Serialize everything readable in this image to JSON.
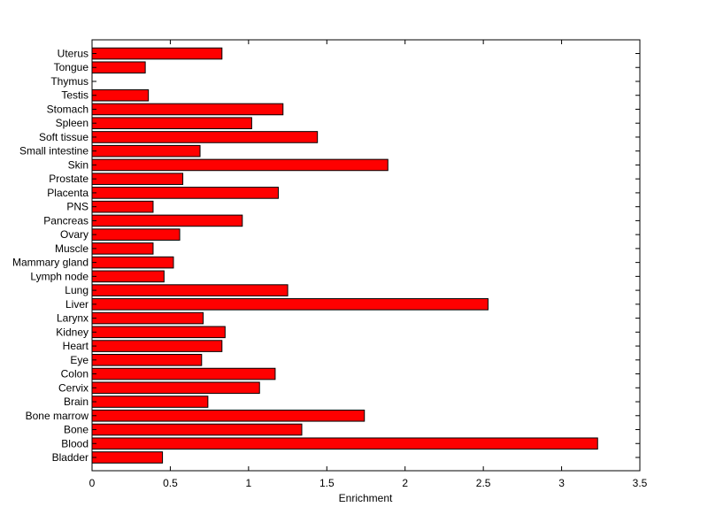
{
  "chart_data": {
    "type": "bar",
    "orientation": "horizontal",
    "title": "",
    "xlabel": "Enrichment",
    "ylabel": "",
    "xlim": [
      0,
      3.5
    ],
    "xticks": [
      0,
      0.5,
      1,
      1.5,
      2,
      2.5,
      3,
      3.5
    ],
    "xtick_labels": [
      "0",
      "0.5",
      "1",
      "1.5",
      "2",
      "2.5",
      "3",
      "3.5"
    ],
    "grid": false,
    "bar_color": "#ff0000",
    "bar_edge_color": "#000000",
    "categories": [
      "Bladder",
      "Blood",
      "Bone",
      "Bone marrow",
      "Brain",
      "Cervix",
      "Colon",
      "Eye",
      "Heart",
      "Kidney",
      "Larynx",
      "Liver",
      "Lung",
      "Lymph node",
      "Mammary gland",
      "Muscle",
      "Ovary",
      "Pancreas",
      "PNS",
      "Placenta",
      "Prostate",
      "Skin",
      "Small intestine",
      "Soft tissue",
      "Spleen",
      "Stomach",
      "Testis",
      "Thymus",
      "Tongue",
      "Uterus"
    ],
    "values": [
      0.45,
      3.23,
      1.34,
      1.74,
      0.74,
      1.07,
      1.17,
      0.7,
      0.83,
      0.85,
      0.71,
      2.53,
      1.25,
      0.46,
      0.52,
      0.39,
      0.56,
      0.96,
      0.39,
      1.19,
      0.58,
      1.89,
      0.69,
      1.44,
      1.02,
      1.22,
      0.36,
      0.0,
      0.34,
      0.83
    ]
  }
}
